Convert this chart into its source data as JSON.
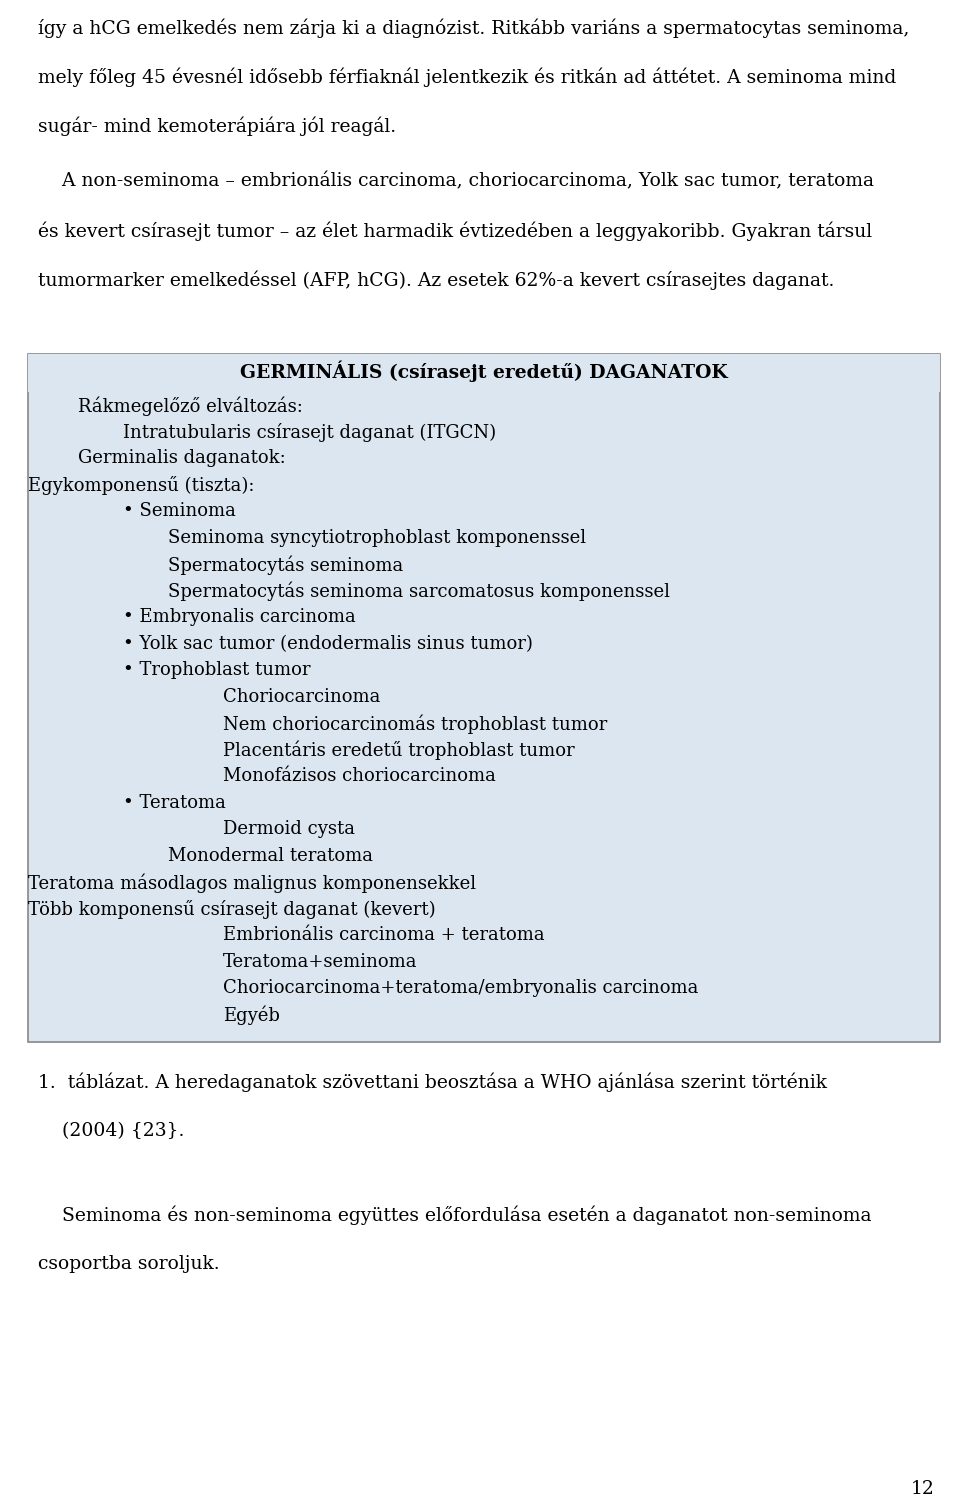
{
  "bg_color": "#ffffff",
  "text_color": "#000000",
  "page_width": 9.6,
  "page_height": 15.02,
  "top_paragraphs": [
    "így a hCG emelkedés nem zárja ki a diagnózist. Ritkább variáns a spermatocytas seminoma,",
    "mely főleg 45 évesnél idősebb férfiaknál jelentkezik és ritkán ad áttétet. A seminoma mind",
    "sugár- mind kemoterápiára jól reagál."
  ],
  "non_sem_lines": [
    "    A non-seminoma – embrionális carcinoma, choriocarcinoma, Yolk sac tumor, teratoma",
    "és kevert csírasejt tumor – az élet harmadik évtizedében a leggyakoribb. Gyakran társul",
    "tumormarker emelkedéssel (AFP, hCG). Az esetek 62%-a kevert csírasejtes daganat."
  ],
  "box_title": "GERMINÁLIS (csírasejt eredetű) DAGANATOK",
  "box_bg": "#dce6f1",
  "box_lines": [
    {
      "text": "Rákmegelőző elváltozás:",
      "indent": 1
    },
    {
      "text": "Intratubularis csírasejt daganat (ITGCN)",
      "indent": 2
    },
    {
      "text": "Germinalis daganatok:",
      "indent": 1
    },
    {
      "text": "Egykomponensű (tiszta):",
      "indent": 0
    },
    {
      "text": "• Seminoma",
      "indent": 2
    },
    {
      "text": "Seminoma syncytiotrophoblast komponenssel",
      "indent": 3
    },
    {
      "text": "Spermatocytás seminoma",
      "indent": 3
    },
    {
      "text": "Spermatocytás seminoma sarcomatosus komponenssel",
      "indent": 3
    },
    {
      "text": "• Embryonalis carcinoma",
      "indent": 2
    },
    {
      "text": "• Yolk sac tumor (endodermalis sinus tumor)",
      "indent": 2
    },
    {
      "text": "• Trophoblast tumor",
      "indent": 2
    },
    {
      "text": "Choriocarcinoma",
      "indent": 4
    },
    {
      "text": "Nem choriocarcinomás trophoblast tumor",
      "indent": 4
    },
    {
      "text": "Placentáris eredetű trophoblast tumor",
      "indent": 4
    },
    {
      "text": "Monofázisos choriocarcinoma",
      "indent": 4
    },
    {
      "text": "• Teratoma",
      "indent": 2
    },
    {
      "text": "Dermoid cysta",
      "indent": 4
    },
    {
      "text": "Monodermal teratoma",
      "indent": 3
    },
    {
      "text": "Teratoma másodlagos malignus komponensekkel",
      "indent": 0
    },
    {
      "text": "Több komponensű csírasejt daganat (kevert)",
      "indent": 0
    },
    {
      "text": "Embrionális carcinoma + teratoma",
      "indent": 4
    },
    {
      "text": "Teratoma+seminoma",
      "indent": 4
    },
    {
      "text": "Choriocarcinoma+teratoma/embryonalis carcinoma",
      "indent": 4
    },
    {
      "text": "Egyéb",
      "indent": 4
    }
  ],
  "caption_lines": [
    "1.  táblázat. A heredaganatok szövettani beosztása a WHO ajánlása szerint történik",
    "    (2004) {23}."
  ],
  "bottom_lines": [
    "    Seminoma és non-seminoma együttes előfordulása esetén a daganatot non-seminoma",
    "csoportba soroljuk."
  ],
  "page_num": "12",
  "font_size": 13.5
}
